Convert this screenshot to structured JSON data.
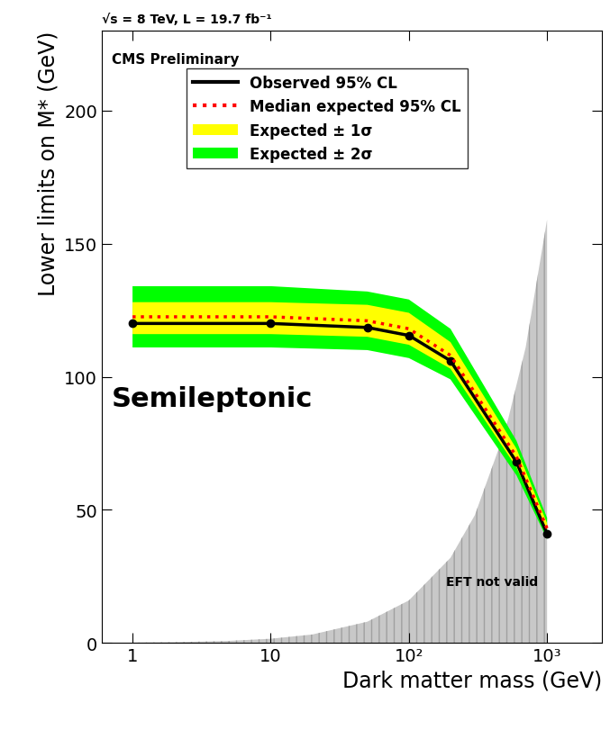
{
  "chart_data": {
    "type": "line",
    "title": "√s = 8 TeV, L = 19.7 fb⁻¹",
    "x_label": "Dark matter mass (GeV)",
    "y_label": "Lower limits on M* (GeV)",
    "annotations": {
      "experiment": "CMS Preliminary",
      "channel": "Semileptonic"
    },
    "log": "x",
    "legend": "upper center",
    "xlim": [
      0.6,
      2500
    ],
    "xticks": [
      1,
      10,
      {
        "value": 100,
        "label": "10²"
      },
      {
        "value": 1000,
        "label": "10³"
      }
    ],
    "ylim": [
      0,
      230
    ],
    "yticks": [
      0,
      50,
      100,
      150,
      200
    ],
    "x": [
      1,
      10,
      50,
      100,
      200,
      600,
      1000
    ],
    "series": [
      {
        "name": "Observed 95% CL",
        "color": "#000000",
        "marker": "circle",
        "line_style": "solid",
        "values": [
          120,
          120,
          118.5,
          115.5,
          106,
          68,
          41
        ]
      },
      {
        "name": "Median expected 95% CL",
        "color": "#ff0000",
        "line_style": "dotted",
        "values": [
          122.5,
          122.5,
          121,
          118,
          108,
          70,
          43
        ]
      },
      {
        "name": "Expected ± 1σ",
        "type": "band",
        "color": "#ffff00",
        "lower": [
          116,
          116,
          115,
          112,
          103,
          66,
          41
        ],
        "upper": [
          128,
          128,
          127,
          124,
          113,
          73,
          45
        ]
      },
      {
        "name": "Expected ± 2σ",
        "type": "band",
        "color": "#00ff00",
        "lower": [
          111,
          111,
          110,
          107,
          99,
          63,
          39
        ],
        "upper": [
          134,
          134,
          132,
          129,
          118,
          76,
          47
        ]
      }
    ],
    "eft_region": {
      "label": "EFT not valid",
      "color": "#c8c8c8",
      "x": [
        1,
        2,
        5,
        10,
        20,
        50,
        100,
        200,
        300,
        500,
        700,
        1000
      ],
      "values": [
        0.16,
        0.32,
        0.8,
        1.6,
        3.2,
        8,
        16,
        32,
        48,
        80,
        111,
        159
      ]
    }
  }
}
